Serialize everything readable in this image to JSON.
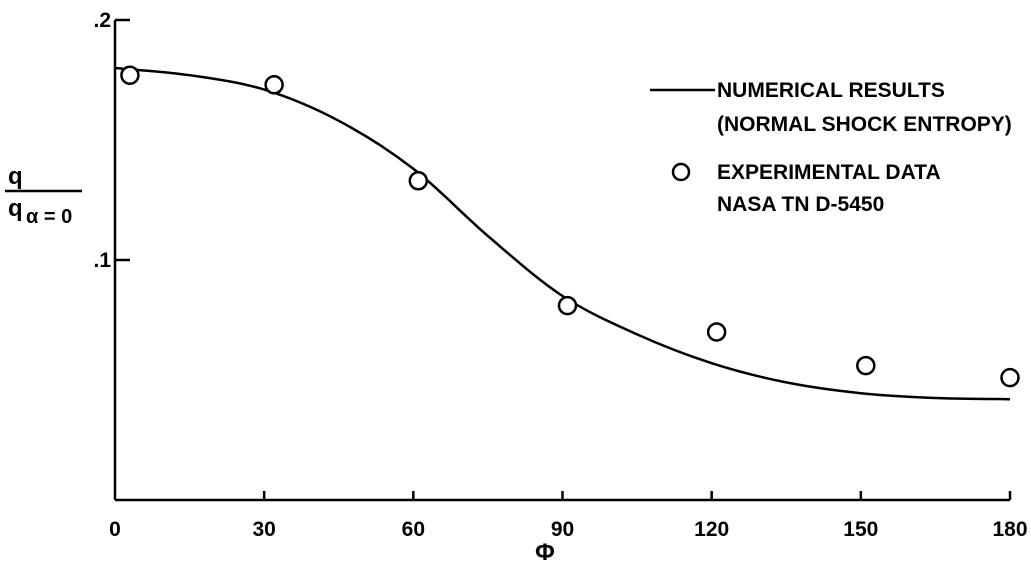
{
  "chart_data": {
    "type": "line",
    "xlabel": "Φ",
    "ylabel": {
      "numerator": "q",
      "denominator": "q",
      "denominator_subscript": "α = 0"
    },
    "xlim": [
      0,
      180
    ],
    "ylim": [
      0,
      0.2
    ],
    "x_ticks": [
      0,
      30,
      60,
      90,
      120,
      150,
      180
    ],
    "x_tick_labels": [
      "0",
      "30",
      "60",
      "90",
      "120",
      "150",
      "180"
    ],
    "y_ticks": [
      0.1,
      0.2
    ],
    "y_tick_labels": [
      ".1",
      ".2"
    ],
    "grid": false,
    "legend_position": "top-right",
    "series": [
      {
        "name": "NUMERICAL RESULTS (NORMAL SHOCK ENTROPY)",
        "legend_lines": [
          "NUMERICAL RESULTS",
          "(NORMAL SHOCK ENTROPY)"
        ],
        "style": "solid-line",
        "x": [
          0,
          15,
          30,
          45,
          60,
          75,
          90,
          105,
          120,
          135,
          150,
          165,
          180
        ],
        "y": [
          0.18,
          0.177,
          0.171,
          0.158,
          0.138,
          0.11,
          0.085,
          0.069,
          0.057,
          0.049,
          0.0445,
          0.0425,
          0.042
        ]
      },
      {
        "name": "EXPERIMENTAL DATA NASA TN D-5450",
        "legend_lines": [
          "EXPERIMENTAL DATA",
          "NASA TN D-5450"
        ],
        "style": "open-circle",
        "x": [
          3,
          32,
          61,
          91,
          121,
          151,
          180
        ],
        "y": [
          0.177,
          0.173,
          0.133,
          0.081,
          0.07,
          0.056,
          0.051
        ]
      }
    ]
  }
}
